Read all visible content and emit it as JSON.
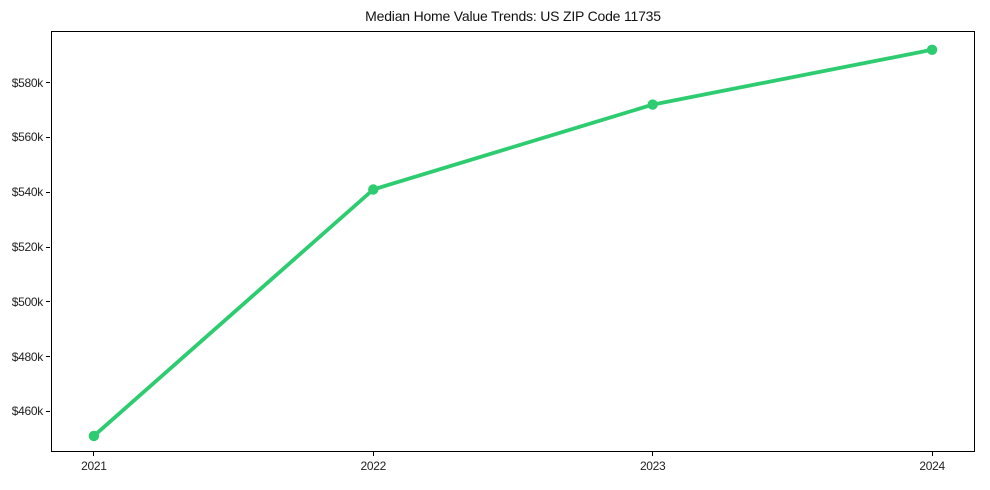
{
  "chart_data": {
    "type": "line",
    "title": "Median Home Value Trends: US ZIP Code 11735",
    "x": [
      2021,
      2022,
      2023,
      2024
    ],
    "x_tick_labels": [
      "2021",
      "2022",
      "2023",
      "2024"
    ],
    "series": [
      {
        "name": "Median home value",
        "values": [
          451000,
          541000,
          572000,
          592000
        ],
        "color": "#2ecc71",
        "marker": "circle",
        "line_width": 3.8,
        "marker_radius": 5.2
      }
    ],
    "y_ticks": [
      460000,
      480000,
      500000,
      520000,
      540000,
      560000,
      580000
    ],
    "y_tick_labels": [
      "$460k",
      "$480k",
      "$500k",
      "$520k",
      "$540k",
      "$560k",
      "$580k"
    ],
    "xlim": [
      2020.85,
      2024.15
    ],
    "ylim": [
      445500,
      598500
    ],
    "grid": false,
    "legend": "none",
    "axes_box": true,
    "text_color": "#1f1f1f",
    "spine_color": "#000000",
    "background": "#ffffff"
  }
}
